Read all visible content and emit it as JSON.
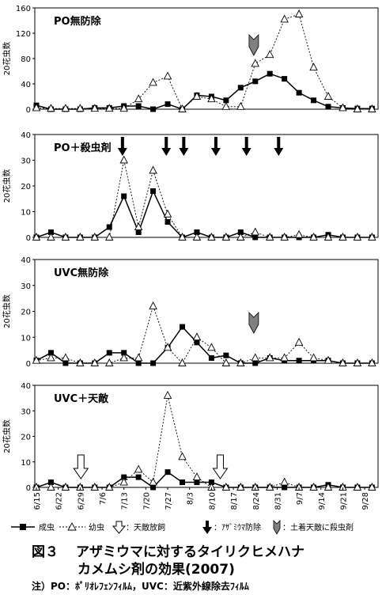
{
  "chart_data": [
    {
      "type": "line",
      "title": "PO無防除",
      "ylabel": "20花虫数",
      "ylim": [
        0,
        160
      ],
      "yticks": [
        0,
        40,
        80,
        120,
        160
      ],
      "series": [
        {
          "name": "成虫",
          "values": [
            6,
            0,
            0,
            0,
            2,
            2,
            5,
            5,
            0,
            8,
            0,
            22,
            20,
            14,
            34,
            44,
            56,
            48,
            26,
            14,
            4,
            2,
            1,
            1
          ]
        },
        {
          "name": "幼虫",
          "values": [
            2,
            1,
            1,
            1,
            1,
            1,
            1,
            16,
            42,
            52,
            0,
            20,
            16,
            4,
            4,
            72,
            86,
            142,
            150,
            66,
            20,
            2,
            0,
            0
          ]
        }
      ],
      "markers": [
        {
          "type": "soil_enemy_insecticide",
          "x_index": 14.9
        }
      ]
    },
    {
      "type": "line",
      "title": "PO＋殺虫剤",
      "ylabel": "20花虫数",
      "ylim": [
        0,
        40
      ],
      "yticks": [
        0,
        10,
        20,
        30,
        40
      ],
      "series": [
        {
          "name": "成虫",
          "values": [
            0,
            2,
            0,
            0,
            0,
            4,
            16,
            2,
            18,
            6,
            0,
            2,
            0,
            0,
            2,
            0,
            0,
            0,
            0,
            0,
            1,
            0,
            0,
            0
          ]
        },
        {
          "name": "幼虫",
          "values": [
            0,
            0,
            0,
            0,
            0,
            0,
            30,
            4,
            26,
            9,
            0,
            0,
            0,
            0,
            0,
            2,
            0,
            0,
            1,
            0,
            0,
            0,
            0,
            0
          ]
        }
      ],
      "markers": [
        {
          "type": "thrips_control",
          "x_index": 5.9
        },
        {
          "type": "thrips_control",
          "x_index": 8.9
        },
        {
          "type": "thrips_control",
          "x_index": 10.1
        },
        {
          "type": "thrips_control",
          "x_index": 12.3
        },
        {
          "type": "thrips_control",
          "x_index": 14.4
        },
        {
          "type": "thrips_control",
          "x_index": 16.6
        }
      ]
    },
    {
      "type": "line",
      "title": "UVC無防除",
      "ylabel": "20花虫数",
      "ylim": [
        0,
        40
      ],
      "yticks": [
        0,
        10,
        20,
        30,
        40
      ],
      "series": [
        {
          "name": "成虫",
          "values": [
            1,
            4,
            0,
            0,
            0,
            4,
            4,
            0,
            0,
            6,
            14,
            8,
            2,
            3,
            0,
            0,
            2,
            1,
            1,
            1,
            1,
            0,
            0,
            0
          ]
        },
        {
          "name": "幼虫",
          "values": [
            1,
            2,
            2,
            0,
            0,
            0,
            2,
            2,
            22,
            6,
            0,
            10,
            6,
            0,
            0,
            2,
            2,
            2,
            8,
            2,
            1,
            0,
            0,
            0
          ]
        }
      ],
      "markers": [
        {
          "type": "soil_enemy_insecticide",
          "x_index": 14.9
        }
      ]
    },
    {
      "type": "line",
      "title": "UVC＋天敵",
      "ylabel": "20花虫数",
      "ylim": [
        0,
        40
      ],
      "yticks": [
        0,
        10,
        20,
        30,
        40
      ],
      "series": [
        {
          "name": "成虫",
          "values": [
            0,
            2,
            0,
            0,
            0,
            0,
            4,
            4,
            0,
            6,
            2,
            2,
            2,
            0,
            0,
            0,
            0,
            0,
            0,
            0,
            1,
            0,
            0,
            0
          ]
        },
        {
          "name": "幼虫",
          "values": [
            0,
            0,
            0,
            0,
            0,
            0,
            2,
            7,
            2,
            36,
            12,
            4,
            0,
            0,
            0,
            0,
            0,
            2,
            0,
            0,
            0,
            0,
            0,
            0
          ]
        }
      ],
      "markers": [
        {
          "type": "natural_enemy_release",
          "x_index": 3.05
        },
        {
          "type": "natural_enemy_release",
          "x_index": 12.6
        }
      ]
    }
  ],
  "x_tick_labels": [
    "6/15",
    "6/22",
    "6/29",
    "7/6",
    "7/13",
    "7/20",
    "7/27",
    "8/3",
    "8/10",
    "8/17",
    "8/24",
    "8/31",
    "9/7",
    "9/14",
    "9/21",
    "9/28"
  ],
  "legend": {
    "adult": "成虫",
    "larva": "幼虫",
    "natural_enemy_release": "：天敵放飼",
    "thrips_control": "：ｱｻﾞﾐｳﾏ防除",
    "soil_enemy_insecticide": "：土着天敵に殺虫剤"
  },
  "caption": {
    "figure_no": "図３",
    "line1": "アザミウマに対するタイリクヒメハナ",
    "line2": "カメムシ剤の効果(2007)"
  },
  "note": "注）PO：ﾎﾟﾘｵﾚﾌｪﾝﾌｨﾙﾑ，UVC：近紫外線除去ﾌｨﾙﾑ",
  "colors": {
    "line": "#000000",
    "marker_gray": "#808080",
    "background": "#ffffff"
  },
  "icons": {
    "adult_marker": "filled-square",
    "larva_marker": "open-triangle",
    "release_marker": "hollow-down-arrow",
    "control_marker": "solid-down-arrow",
    "insecticide_marker": "gray-chevron"
  }
}
